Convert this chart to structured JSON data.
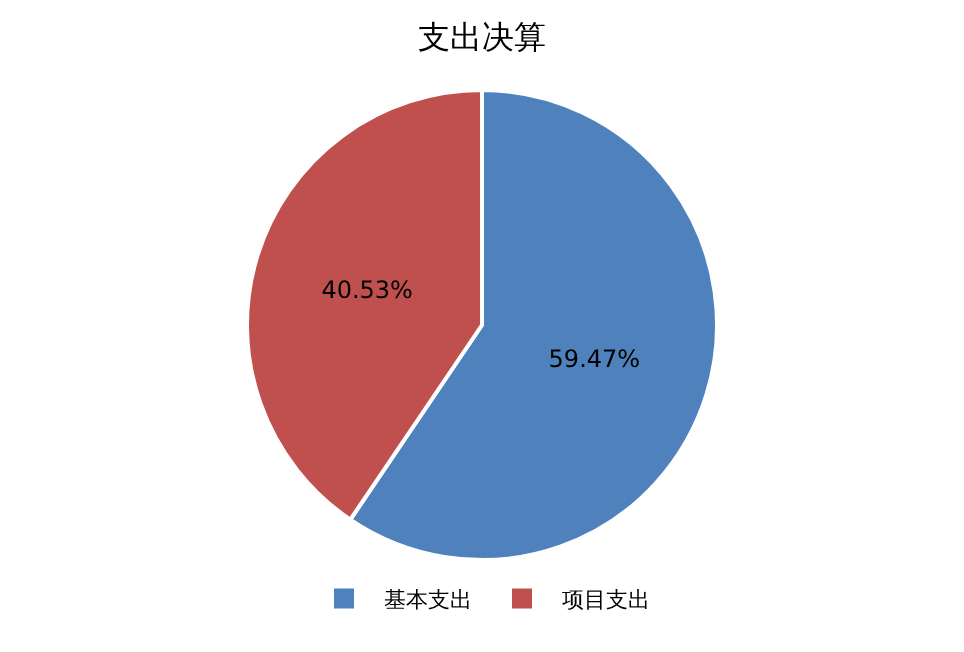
{
  "chart_data": {
    "type": "pie",
    "title": "支出决算",
    "categories": [
      "基本支出",
      "项目支出"
    ],
    "values": [
      59.47,
      40.53
    ],
    "colors": [
      "#4f81bd",
      "#c0504d"
    ],
    "value_labels": [
      "59.47%",
      "40.53%"
    ],
    "legend": "bottom"
  }
}
